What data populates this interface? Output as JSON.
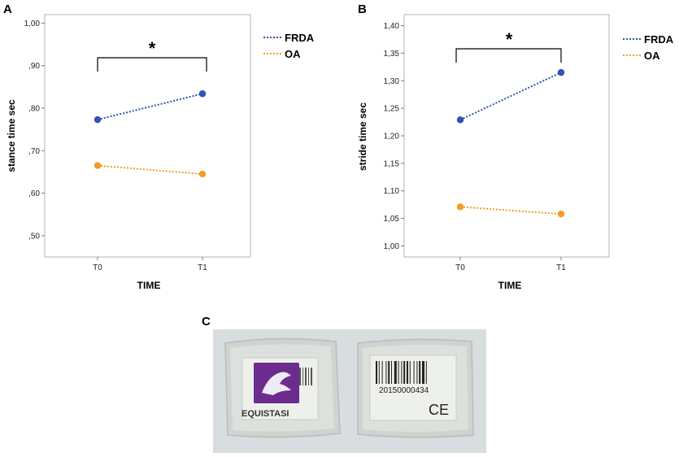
{
  "chart_data": [
    {
      "panel": "A",
      "type": "line",
      "title": "",
      "xlabel": "TIME",
      "ylabel": "stance time sec",
      "categories": [
        "T0",
        "T1"
      ],
      "ylim": [
        0.45,
        1.02
      ],
      "yticks": [
        ",50",
        ",60",
        ",70",
        ",80",
        ",90",
        "1,00"
      ],
      "ytick_values": [
        0.5,
        0.6,
        0.7,
        0.8,
        0.9,
        1.0
      ],
      "series": [
        {
          "name": "FRDA",
          "values": [
            0.773,
            0.834
          ],
          "color": "#3552b2"
        },
        {
          "name": "OA",
          "values": [
            0.665,
            0.645
          ],
          "color": "#f39c27"
        }
      ],
      "significance": "*",
      "legend": "top-right"
    },
    {
      "panel": "B",
      "type": "line",
      "title": "",
      "xlabel": "TIME",
      "ylabel": "stride time sec",
      "categories": [
        "T0",
        "T1"
      ],
      "ylim": [
        0.98,
        1.42
      ],
      "yticks": [
        "1,00",
        "1,05",
        "1,10",
        "1,15",
        "1,20",
        "1,25",
        "1,30",
        "1,35",
        "1,40"
      ],
      "ytick_values": [
        1.0,
        1.05,
        1.1,
        1.15,
        1.2,
        1.25,
        1.3,
        1.35,
        1.4
      ],
      "series": [
        {
          "name": "FRDA",
          "values": [
            1.229,
            1.315
          ],
          "color": "#3552b2"
        },
        {
          "name": "OA",
          "values": [
            1.071,
            1.058
          ],
          "color": "#f39c27"
        }
      ],
      "significance": "*",
      "legend": "top-right"
    }
  ],
  "photo": {
    "panel": "C",
    "barcode_number": "20150000434",
    "brand": "EQUISTASI",
    "ce_mark": "CE",
    "colors": {
      "purple": "#6b2c8e",
      "gel": "#cfd4d0",
      "bg": "#d8dde0"
    }
  }
}
